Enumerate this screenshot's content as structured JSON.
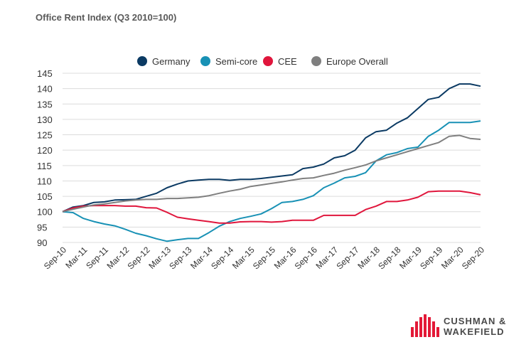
{
  "title": "Office Rent Index (Q3 2010=100)",
  "logo": {
    "line1": "CUSHMAN &",
    "line2": "WAKEFIELD",
    "color": "#e31937"
  },
  "chart_data": {
    "type": "line",
    "title": "Office Rent Index (Q3 2010=100)",
    "xlabel": "",
    "ylabel": "",
    "ylim": [
      90,
      145
    ],
    "yticks": [
      90,
      95,
      100,
      105,
      110,
      115,
      120,
      125,
      130,
      135,
      140,
      145
    ],
    "grid": true,
    "legend_position": "top-center",
    "x": [
      "Sep-10",
      "Dec-10",
      "Mar-11",
      "Jun-11",
      "Sep-11",
      "Dec-11",
      "Mar-12",
      "Jun-12",
      "Sep-12",
      "Dec-12",
      "Mar-13",
      "Jun-13",
      "Sep-13",
      "Dec-13",
      "Mar-14",
      "Jun-14",
      "Sep-14",
      "Dec-14",
      "Mar-15",
      "Jun-15",
      "Sep-15",
      "Dec-15",
      "Mar-16",
      "Jun-16",
      "Sep-16",
      "Dec-16",
      "Mar-17",
      "Jun-17",
      "Sep-17",
      "Dec-17",
      "Mar-18",
      "Jun-18",
      "Sep-18",
      "Dec-18",
      "Mar-19",
      "Jun-19",
      "Sep-19",
      "Dec-19",
      "Mar-20",
      "Jun-20",
      "Sep-20"
    ],
    "xticks": [
      "Sep-10",
      "Mar-11",
      "Sep-11",
      "Mar-12",
      "Sep-12",
      "Mar-13",
      "Sep-13",
      "Mar-14",
      "Sep-14",
      "Mar-15",
      "Sep-15",
      "Mar-16",
      "Sep-16",
      "Mar-17",
      "Sep-17",
      "Mar-18",
      "Sep-18",
      "Mar-19",
      "Sep-19",
      "Mar-20",
      "Sep-20"
    ],
    "series": [
      {
        "name": "Germany",
        "color": "#0b3a63",
        "values": [
          100,
          101.5,
          102,
          103,
          103.2,
          103.8,
          103.9,
          104,
          105,
          106,
          107.8,
          109,
          110,
          110.3,
          110.5,
          110.5,
          110.2,
          110.5,
          110.5,
          110.8,
          111.2,
          111.6,
          112,
          114,
          114.5,
          115.5,
          117.5,
          118.2,
          120,
          124,
          126,
          126.5,
          128.8,
          130.5,
          133.5,
          136.5,
          137.2,
          140,
          141.5,
          141.5,
          140.8
        ]
      },
      {
        "name": "Semi-core",
        "color": "#1891b5",
        "values": [
          100,
          99.7,
          97.8,
          96.8,
          96,
          95.4,
          94.3,
          93,
          92.2,
          91.2,
          90.4,
          90.9,
          91.3,
          91.3,
          93.2,
          95.3,
          96.8,
          97.8,
          98.5,
          99.3,
          101,
          103,
          103.3,
          104,
          105.2,
          107.8,
          109.3,
          111,
          111.5,
          112.7,
          116.5,
          118.5,
          119.2,
          120.5,
          121,
          124.5,
          126.5,
          129,
          129,
          129,
          129.5
        ]
      },
      {
        "name": "CEE",
        "color": "#e0163c",
        "values": [
          100,
          101.2,
          101.8,
          102,
          102,
          102,
          101.8,
          101.8,
          101.3,
          101.2,
          99.8,
          98.2,
          97.7,
          97.2,
          96.8,
          96.3,
          96.3,
          96.7,
          96.8,
          96.8,
          96.6,
          96.8,
          97.2,
          97.2,
          97.2,
          98.8,
          98.8,
          98.8,
          98.8,
          100.7,
          101.8,
          103.3,
          103.3,
          103.8,
          104.7,
          106.5,
          106.7,
          106.7,
          106.7,
          106.2,
          105.5
        ]
      },
      {
        "name": "Europe Overall",
        "color": "#7f7f7f",
        "values": [
          100,
          100.8,
          101.5,
          102.2,
          102.5,
          103,
          103.5,
          103.8,
          104,
          104,
          104.3,
          104.3,
          104.5,
          104.7,
          105.2,
          106,
          106.7,
          107.3,
          108.2,
          108.7,
          109.2,
          109.7,
          110.3,
          110.8,
          111,
          111.8,
          112.5,
          113.5,
          114.3,
          115.2,
          116.5,
          117.5,
          118.5,
          119.5,
          120.5,
          121.5,
          122.5,
          124.5,
          124.8,
          123.8,
          123.5
        ]
      }
    ]
  }
}
